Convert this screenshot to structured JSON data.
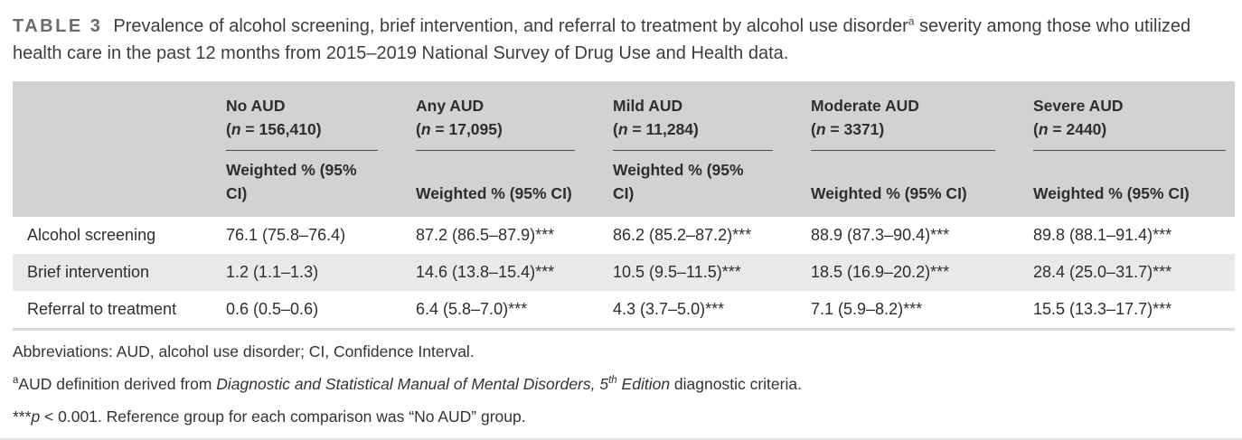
{
  "table_label": "TABLE 3",
  "caption": {
    "text_before_sup": "Prevalence of alcohol screening, brief intervention, and referral to treatment by alcohol use disorder",
    "sup": "a",
    "text_after_sup": " severity among those who utilized health care in the past 12 months from 2015–2019 National Survey of Drug Use and Health data."
  },
  "table": {
    "columns": [
      {
        "name": "No AUD",
        "n_open": "(",
        "n_var": "n",
        "n_rest": " = 156,410)",
        "subheader": "Weighted % (95% CI)"
      },
      {
        "name": "Any AUD",
        "n_open": "(",
        "n_var": "n",
        "n_rest": " = 17,095)",
        "subheader": "Weighted % (95% CI)"
      },
      {
        "name": "Mild AUD",
        "n_open": "(",
        "n_var": "n",
        "n_rest": " = 11,284)",
        "subheader": "Weighted % (95% CI)"
      },
      {
        "name": "Moderate AUD",
        "n_open": "(",
        "n_var": "n",
        "n_rest": " = 3371)",
        "subheader": "Weighted % (95% CI)"
      },
      {
        "name": "Severe AUD",
        "n_open": "(",
        "n_var": "n",
        "n_rest": " = 2440)",
        "subheader": "Weighted % (95% CI)"
      }
    ],
    "rows": [
      {
        "label": "Alcohol screening",
        "values": [
          "76.1 (75.8–76.4)",
          "87.2 (86.5–87.9)***",
          "86.2 (85.2–87.2)***",
          "88.9 (87.3–90.4)***",
          "89.8 (88.1–91.4)***"
        ]
      },
      {
        "label": "Brief intervention",
        "values": [
          "1.2 (1.1–1.3)",
          "14.6 (13.8–15.4)***",
          "10.5 (9.5–11.5)***",
          "18.5 (16.9–20.2)***",
          "28.4 (25.0–31.7)***"
        ]
      },
      {
        "label": "Referral to treatment",
        "values": [
          "0.6 (0.5–0.6)",
          "6.4 (5.8–7.0)***",
          "4.3 (3.7–5.0)***",
          "7.1 (5.9–8.2)***",
          "15.5 (13.3–17.7)***"
        ]
      }
    ]
  },
  "footnotes": {
    "abbreviations": "Abbreviations: AUD, alcohol use disorder; CI, Confidence Interval.",
    "definition": {
      "sup": "a",
      "text1": "AUD definition derived from ",
      "italic1": "Diagnostic and Statistical Manual of Mental Disorders, 5",
      "sup_italic": "th",
      "italic2": " Edition",
      "text2": " diagnostic criteria."
    },
    "significance": {
      "stars": "***",
      "p_symbol": "p",
      "text": " < 0.001. Reference group for each comparison was “No AUD” group."
    }
  },
  "colors": {
    "header_background": "#d2d2d2",
    "stripe_background": "#e9e9e9",
    "body_text": "#2e2e2e",
    "table_label_gray": "#6b6b6b",
    "header_underline": "#4a4a4a",
    "bottom_rule": "#d9d9d9"
  }
}
